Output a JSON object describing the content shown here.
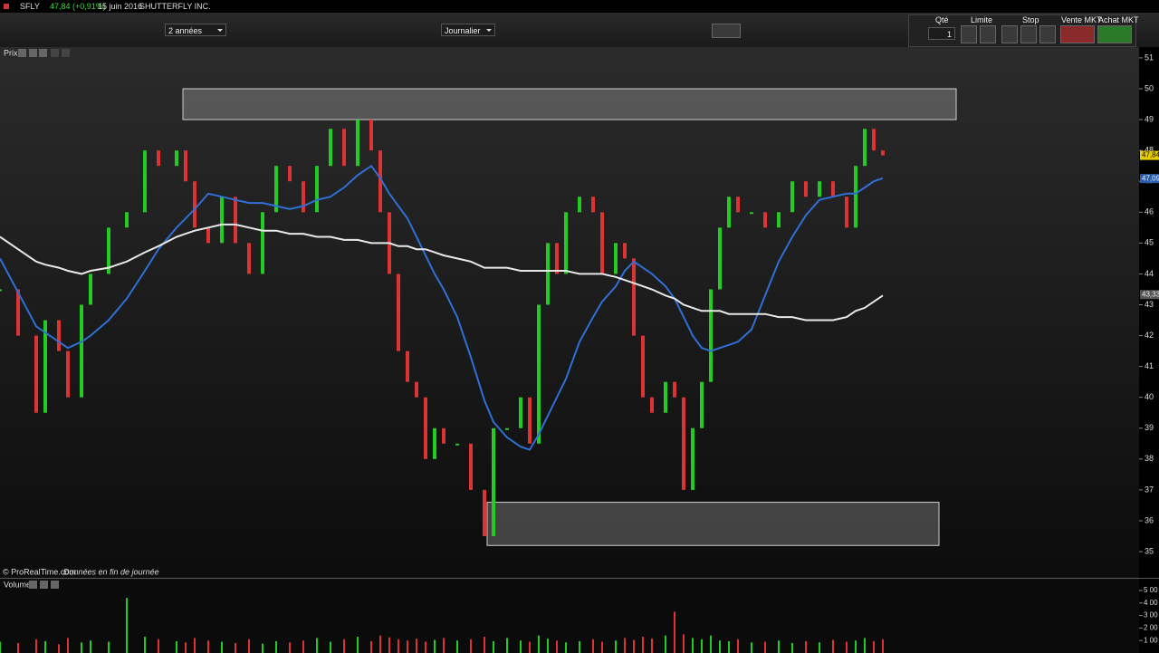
{
  "header": {
    "symbol": "SFLY",
    "quote": "47,84 (+0,91%)",
    "date": "15 juin 2016",
    "name": "SHUTTERFLY INC."
  },
  "toolbar": {
    "period": "2 années",
    "interval": "Journalier",
    "qty_label": "Qté",
    "qty": "1",
    "limit": "Limite",
    "stop": "Stop",
    "sell": "Vente MKT",
    "buy": "Achat MKT"
  },
  "footer": {
    "credit": "© ProRealTime.com",
    "note": "Données en fin de journée"
  },
  "chart_data": [
    {
      "type": "candlestick",
      "panel_label": "Prix",
      "x": [
        0,
        20,
        40,
        50,
        65,
        75,
        90,
        100,
        120,
        140,
        160,
        175,
        195,
        205,
        215,
        230,
        245,
        260,
        275,
        290,
        305,
        320,
        335,
        350,
        365,
        380,
        395,
        410,
        420,
        430,
        440,
        450,
        460,
        470,
        480,
        490,
        505,
        520,
        535,
        545,
        560,
        575,
        585,
        595,
        605,
        615,
        625,
        640,
        655,
        665,
        680,
        690,
        700,
        710,
        720,
        735,
        745,
        755,
        765,
        775,
        785,
        795,
        805,
        815,
        830,
        845,
        860,
        875,
        890,
        905,
        920,
        935,
        945,
        955,
        965,
        975
      ],
      "values": [
        43.5,
        42,
        39.5,
        42.5,
        41.5,
        40,
        43,
        44,
        45.5,
        46,
        48,
        47.5,
        48,
        47,
        45.5,
        45,
        46.5,
        45,
        44,
        46,
        47.5,
        47,
        46,
        47.5,
        48.7,
        47.5,
        49,
        48,
        46,
        44,
        41.5,
        40.5,
        40,
        38,
        39,
        38.5,
        38.5,
        37,
        35.5,
        39,
        39,
        40,
        38.5,
        43,
        45,
        44,
        46,
        46.5,
        46,
        44,
        45,
        44.5,
        42,
        40,
        39.5,
        40.5,
        40,
        37,
        39,
        40.5,
        43.5,
        45.5,
        46.5,
        46,
        46,
        45.5,
        46,
        47,
        46.5,
        47,
        46.5,
        45.5,
        47.5,
        48.7,
        48,
        47.84
      ],
      "up_color": "#22cc22",
      "down_color": "#dd3333",
      "moving_averages": [
        {
          "color": "#2f6fd6",
          "values": [
            44.5,
            43.4,
            42.3,
            42.1,
            41.8,
            41.6,
            41.8,
            42.0,
            42.5,
            43.2,
            44.1,
            44.8,
            45.5,
            45.8,
            46.1,
            46.6,
            46.5,
            46.4,
            46.3,
            46.3,
            46.2,
            46.1,
            46.2,
            46.4,
            46.5,
            46.8,
            47.2,
            47.5,
            47.1,
            46.6,
            46.2,
            45.8,
            45.2,
            44.6,
            44.0,
            43.5,
            42.6,
            41.3,
            39.9,
            39.2,
            38.7,
            38.4,
            38.3,
            38.8,
            39.4,
            40.0,
            40.6,
            41.8,
            42.6,
            43.1,
            43.6,
            44.1,
            44.4,
            44.2,
            44.0,
            43.6,
            43.2,
            42.6,
            42.0,
            41.6,
            41.5,
            41.6,
            41.7,
            41.8,
            42.2,
            43.3,
            44.4,
            45.2,
            45.9,
            46.4,
            46.5,
            46.6,
            46.6,
            46.8,
            47.0,
            47.1
          ]
        },
        {
          "color": "#e8e8e8",
          "values": [
            45.2,
            44.8,
            44.4,
            44.3,
            44.2,
            44.1,
            44.0,
            44.1,
            44.2,
            44.4,
            44.7,
            44.9,
            45.2,
            45.3,
            45.4,
            45.5,
            45.6,
            45.6,
            45.5,
            45.4,
            45.4,
            45.3,
            45.3,
            45.2,
            45.2,
            45.1,
            45.1,
            45.0,
            45.0,
            45.0,
            44.9,
            44.9,
            44.8,
            44.8,
            44.7,
            44.6,
            44.5,
            44.4,
            44.2,
            44.2,
            44.2,
            44.1,
            44.1,
            44.1,
            44.1,
            44.1,
            44.1,
            44.0,
            44.0,
            44.0,
            43.9,
            43.8,
            43.7,
            43.6,
            43.5,
            43.3,
            43.2,
            43.0,
            42.9,
            42.8,
            42.8,
            42.8,
            42.7,
            42.7,
            42.7,
            42.7,
            42.6,
            42.6,
            42.5,
            42.5,
            42.5,
            42.6,
            42.8,
            42.9,
            43.1,
            43.3
          ]
        }
      ],
      "zones": [
        {
          "low": 49,
          "high": 50,
          "x_start": 202,
          "x_end": 1056
        },
        {
          "low": 35.2,
          "high": 36.6,
          "x_start": 538,
          "x_end": 1037
        }
      ],
      "price_tags": [
        {
          "value": 47.84,
          "label": "47,84",
          "color": "#e8d000"
        },
        {
          "value": 47.09,
          "label": "47,09",
          "color": "#2a5db0"
        },
        {
          "value": 43.33,
          "label": "43,33",
          "color": "#555555"
        }
      ],
      "xlim": [
        0,
        1258
      ],
      "ylim": [
        34.18,
        51.35
      ],
      "yticks": [
        35,
        36,
        37,
        38,
        39,
        40,
        41,
        42,
        43,
        44,
        45,
        46,
        47,
        48,
        49,
        50,
        51
      ]
    },
    {
      "type": "bar",
      "panel_label": "Volume",
      "values": [
        90,
        80,
        110,
        95,
        70,
        120,
        85,
        100,
        90,
        440,
        130,
        110,
        95,
        85,
        120,
        100,
        90,
        80,
        110,
        75,
        95,
        85,
        100,
        120,
        90,
        110,
        130,
        95,
        140,
        125,
        110,
        100,
        115,
        90,
        105,
        120,
        100,
        110,
        130,
        95,
        120,
        100,
        90,
        140,
        115,
        100,
        85,
        95,
        110,
        90,
        100,
        120,
        105,
        130,
        115,
        140,
        330,
        150,
        120,
        110,
        140,
        100,
        95,
        110,
        85,
        90,
        100,
        80,
        95,
        85,
        105,
        90,
        100,
        120,
        95,
        110
      ],
      "ylim": [
        0,
        587
      ],
      "yticks": [
        {
          "value": 500,
          "label": "5 00"
        },
        {
          "value": 400,
          "label": "4 00"
        },
        {
          "value": 300,
          "label": "3 00"
        },
        {
          "value": 200,
          "label": "2 00"
        },
        {
          "value": 100,
          "label": "1 00"
        }
      ]
    }
  ]
}
